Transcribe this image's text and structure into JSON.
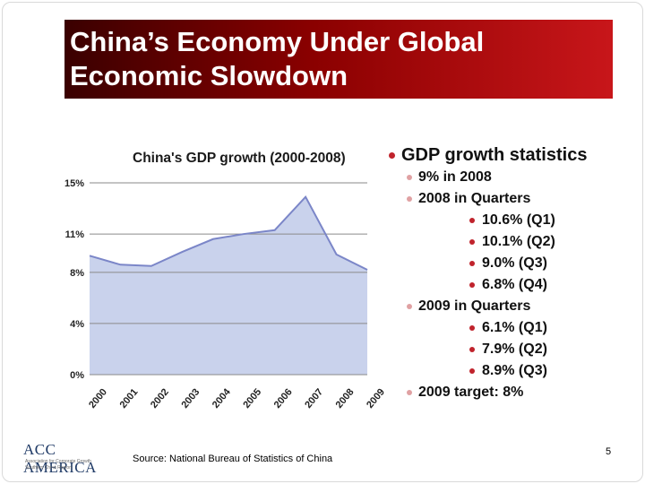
{
  "slide": {
    "title": "China’s Economy Under Global\nEconomic Slowdown",
    "source": "Source: National Bureau of Statistics of China",
    "page_number": "5",
    "logo": {
      "main": "ACC AMERICA",
      "sub1": "Association for Corporate Growth",
      "sub2": "Southern China Region"
    }
  },
  "bullets": [
    {
      "level": 0,
      "text": "GDP growth statistics"
    },
    {
      "level": 1,
      "text": "9% in 2008"
    },
    {
      "level": 1,
      "text": "2008 in Quarters"
    },
    {
      "level": 2,
      "text": "10.6% (Q1)"
    },
    {
      "level": 2,
      "text": "10.1% (Q2)"
    },
    {
      "level": 2,
      "text": "9.0% (Q3)"
    },
    {
      "level": 2,
      "text": "6.8% (Q4)"
    },
    {
      "level": 1,
      "text": "2009 in Quarters"
    },
    {
      "level": 2,
      "text": "6.1% (Q1)"
    },
    {
      "level": 2,
      "text": "7.9% (Q2)"
    },
    {
      "level": 2,
      "text": "8.9% (Q3)"
    },
    {
      "level": 1,
      "text": "2009 target: 8%"
    }
  ],
  "chart_data": {
    "type": "area",
    "title": "China's GDP growth (2000-2008)",
    "x": [
      "2000",
      "2001",
      "2002",
      "2003",
      "2004",
      "2005",
      "2006",
      "2007",
      "2008",
      "2009"
    ],
    "values": [
      9.3,
      8.6,
      8.5,
      9.6,
      10.6,
      11.0,
      11.3,
      13.9,
      9.4,
      8.2
    ],
    "yticks": [
      0,
      4,
      8,
      11,
      15
    ],
    "ytick_labels": [
      "0%",
      "4%",
      "8%",
      "11%",
      "15%"
    ],
    "ylim": [
      0,
      15
    ],
    "grid": true,
    "colors": {
      "fill": "#c9d2ec",
      "line": "#7b86c8",
      "grid": "#8a8a8a"
    }
  }
}
